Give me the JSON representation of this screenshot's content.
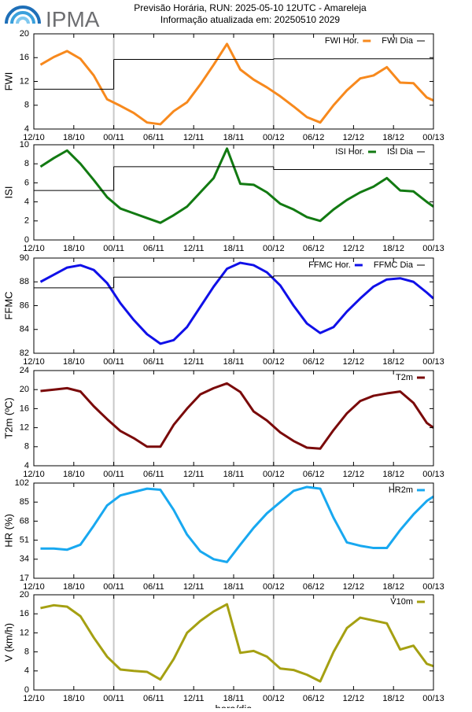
{
  "header": {
    "logo_text": "IPMA",
    "title": "Previsão Horária, RUN: 2025-05-10 12UTC - Amareleja",
    "subtitle": "Informação atualizada em: 20250510 2029"
  },
  "chart_data": [
    {
      "type": "line",
      "y_label": "FWI",
      "xlim": [
        0,
        60
      ],
      "ylim": [
        4,
        20
      ],
      "yticks": [
        4,
        8,
        12,
        16,
        20
      ],
      "xticks": [
        {
          "value": 0,
          "label": "12/10"
        },
        {
          "value": 6,
          "label": "18/10"
        },
        {
          "value": 12,
          "label": "00/11"
        },
        {
          "value": 18,
          "label": "06/11"
        },
        {
          "value": 24,
          "label": "12/11"
        },
        {
          "value": 30,
          "label": "18/11"
        },
        {
          "value": 36,
          "label": "00/12"
        },
        {
          "value": 42,
          "label": "06/12"
        },
        {
          "value": 48,
          "label": "12/12"
        },
        {
          "value": 54,
          "label": "18/12"
        },
        {
          "value": 60,
          "label": "00/13"
        }
      ],
      "vlines": [
        12,
        36
      ],
      "legend": "upper right",
      "x": [
        1,
        3,
        5,
        7,
        9,
        11,
        13,
        15,
        17,
        19,
        21,
        23,
        25,
        27,
        29,
        31,
        33,
        35,
        37,
        39,
        41,
        43,
        45,
        47,
        49,
        51,
        53,
        55,
        57,
        59,
        60
      ],
      "series": [
        {
          "name": "FWI Hor.",
          "color": "#f7891d",
          "values": [
            14.8,
            16.1,
            17.1,
            15.8,
            13.0,
            9.0,
            7.9,
            6.7,
            5.1,
            4.8,
            7.0,
            8.5,
            11.5,
            14.8,
            18.3,
            14.0,
            12.3,
            11.0,
            9.5,
            7.8,
            6.0,
            5.1,
            8.0,
            10.5,
            12.5,
            13.0,
            14.4,
            11.8,
            11.7,
            9.3,
            8.8
          ]
        },
        {
          "name": "FWI Dia",
          "color": "#000000",
          "step": true,
          "x": [
            0,
            12,
            36
          ],
          "values": [
            10.7,
            15.7,
            15.8
          ]
        }
      ]
    },
    {
      "type": "line",
      "y_label": "ISI",
      "xlim": [
        0,
        60
      ],
      "ylim": [
        0,
        10
      ],
      "yticks": [
        0,
        2,
        4,
        6,
        8,
        10
      ],
      "xticks": [
        {
          "value": 0,
          "label": "12/10"
        },
        {
          "value": 6,
          "label": "18/10"
        },
        {
          "value": 12,
          "label": "00/11"
        },
        {
          "value": 18,
          "label": "06/11"
        },
        {
          "value": 24,
          "label": "12/11"
        },
        {
          "value": 30,
          "label": "18/11"
        },
        {
          "value": 36,
          "label": "00/12"
        },
        {
          "value": 42,
          "label": "06/12"
        },
        {
          "value": 48,
          "label": "12/12"
        },
        {
          "value": 54,
          "label": "18/12"
        },
        {
          "value": 60,
          "label": "00/13"
        }
      ],
      "vlines": [
        12,
        36
      ],
      "legend": "upper right",
      "x": [
        1,
        3,
        5,
        7,
        9,
        11,
        13,
        15,
        17,
        19,
        21,
        23,
        25,
        27,
        29,
        31,
        33,
        35,
        37,
        39,
        41,
        43,
        45,
        47,
        49,
        51,
        53,
        55,
        57,
        59,
        60
      ],
      "series": [
        {
          "name": "ISI Hor.",
          "color": "#127a12",
          "values": [
            7.7,
            8.6,
            9.4,
            8.0,
            6.3,
            4.5,
            3.3,
            2.8,
            2.3,
            1.8,
            2.6,
            3.5,
            5.0,
            6.5,
            9.6,
            5.9,
            5.8,
            5.0,
            3.8,
            3.2,
            2.4,
            2.0,
            3.2,
            4.2,
            5.0,
            5.6,
            6.5,
            5.2,
            5.1,
            4.0,
            3.5
          ]
        },
        {
          "name": "ISI Dia",
          "color": "#000000",
          "step": true,
          "x": [
            0,
            12,
            36
          ],
          "values": [
            5.2,
            7.7,
            7.4
          ]
        }
      ]
    },
    {
      "type": "line",
      "y_label": "FFMC",
      "xlim": [
        0,
        60
      ],
      "ylim": [
        82,
        90
      ],
      "yticks": [
        82,
        84,
        86,
        88,
        90
      ],
      "xticks": [
        {
          "value": 0,
          "label": "12/10"
        },
        {
          "value": 6,
          "label": "18/10"
        },
        {
          "value": 12,
          "label": "00/11"
        },
        {
          "value": 18,
          "label": "06/11"
        },
        {
          "value": 24,
          "label": "12/11"
        },
        {
          "value": 30,
          "label": "18/11"
        },
        {
          "value": 36,
          "label": "00/12"
        },
        {
          "value": 42,
          "label": "06/12"
        },
        {
          "value": 48,
          "label": "12/12"
        },
        {
          "value": 54,
          "label": "18/12"
        },
        {
          "value": 60,
          "label": "00/13"
        }
      ],
      "vlines": [
        12,
        36
      ],
      "legend": "upper right",
      "x": [
        1,
        3,
        5,
        7,
        9,
        11,
        13,
        15,
        17,
        19,
        21,
        23,
        25,
        27,
        29,
        31,
        33,
        35,
        37,
        39,
        41,
        43,
        45,
        47,
        49,
        51,
        53,
        55,
        57,
        59,
        60
      ],
      "series": [
        {
          "name": "FFMC Hor.",
          "color": "#1010e8",
          "values": [
            88.0,
            88.6,
            89.2,
            89.4,
            89.0,
            87.9,
            86.2,
            84.8,
            83.6,
            82.8,
            83.1,
            84.2,
            85.9,
            87.6,
            89.1,
            89.6,
            89.4,
            88.8,
            87.7,
            86.0,
            84.5,
            83.7,
            84.2,
            85.5,
            86.6,
            87.6,
            88.2,
            88.3,
            88.0,
            87.1,
            86.6
          ]
        },
        {
          "name": "FFMC Dia",
          "color": "#000000",
          "step": true,
          "x": [
            0,
            12,
            36
          ],
          "values": [
            87.5,
            88.4,
            88.5
          ]
        }
      ]
    },
    {
      "type": "line",
      "y_label": "T2m (ºC)",
      "xlim": [
        0,
        60
      ],
      "ylim": [
        4,
        24
      ],
      "yticks": [
        4,
        8,
        12,
        16,
        20,
        24
      ],
      "xticks": [
        {
          "value": 0,
          "label": "12/10"
        },
        {
          "value": 6,
          "label": "18/10"
        },
        {
          "value": 12,
          "label": "00/11"
        },
        {
          "value": 18,
          "label": "06/11"
        },
        {
          "value": 24,
          "label": "12/11"
        },
        {
          "value": 30,
          "label": "18/11"
        },
        {
          "value": 36,
          "label": "00/12"
        },
        {
          "value": 42,
          "label": "06/12"
        },
        {
          "value": 48,
          "label": "12/12"
        },
        {
          "value": 54,
          "label": "18/12"
        },
        {
          "value": 60,
          "label": "00/13"
        }
      ],
      "vlines": [
        12,
        36
      ],
      "legend": "upper right",
      "x": [
        1,
        3,
        5,
        7,
        9,
        11,
        13,
        15,
        17,
        19,
        21,
        23,
        25,
        27,
        29,
        31,
        33,
        35,
        37,
        39,
        41,
        43,
        45,
        47,
        49,
        51,
        53,
        55,
        57,
        59,
        60
      ],
      "series": [
        {
          "name": "T2m",
          "color": "#7a0a0a",
          "values": [
            19.7,
            20.0,
            20.3,
            19.6,
            16.5,
            13.8,
            11.3,
            9.8,
            8.0,
            8.0,
            12.6,
            16.0,
            19.0,
            20.3,
            21.3,
            19.5,
            15.4,
            13.5,
            11.0,
            9.2,
            7.8,
            7.6,
            11.5,
            15.0,
            17.6,
            18.7,
            19.2,
            19.6,
            17.2,
            13.0,
            12.0
          ]
        }
      ]
    },
    {
      "type": "line",
      "y_label": "HR (%)",
      "xlim": [
        0,
        60
      ],
      "ylim": [
        17,
        102
      ],
      "yticks": [
        17,
        34,
        51,
        68,
        85,
        102
      ],
      "xticks": [
        {
          "value": 0,
          "label": "12/10"
        },
        {
          "value": 6,
          "label": "18/10"
        },
        {
          "value": 12,
          "label": "00/11"
        },
        {
          "value": 18,
          "label": "06/11"
        },
        {
          "value": 24,
          "label": "12/11"
        },
        {
          "value": 30,
          "label": "18/11"
        },
        {
          "value": 36,
          "label": "00/12"
        },
        {
          "value": 42,
          "label": "06/12"
        },
        {
          "value": 48,
          "label": "12/12"
        },
        {
          "value": 54,
          "label": "18/12"
        },
        {
          "value": 60,
          "label": "00/13"
        }
      ],
      "vlines": [
        12,
        36
      ],
      "legend": "upper right",
      "x": [
        1,
        3,
        5,
        7,
        9,
        11,
        13,
        15,
        17,
        19,
        21,
        23,
        25,
        27,
        29,
        31,
        33,
        35,
        37,
        39,
        41,
        43,
        45,
        47,
        49,
        51,
        53,
        55,
        57,
        59,
        60
      ],
      "series": [
        {
          "name": "HR2m",
          "color": "#18a8f0",
          "values": [
            43.5,
            43.5,
            42.5,
            47,
            64,
            82,
            91,
            94,
            97,
            96,
            78,
            56,
            41,
            34,
            31.5,
            47,
            62,
            75,
            85,
            95,
            98.5,
            97,
            71,
            49,
            46,
            44,
            44,
            60,
            74,
            86,
            90
          ]
        }
      ]
    },
    {
      "type": "line",
      "y_label": "V (km/h)",
      "x_label": "hora/dia",
      "xlim": [
        0,
        60
      ],
      "ylim": [
        0,
        20
      ],
      "yticks": [
        0,
        4,
        8,
        12,
        16,
        20
      ],
      "xticks": [
        {
          "value": 0,
          "label": "12/10"
        },
        {
          "value": 6,
          "label": "18/10"
        },
        {
          "value": 12,
          "label": "00/11"
        },
        {
          "value": 18,
          "label": "06/11"
        },
        {
          "value": 24,
          "label": "12/11"
        },
        {
          "value": 30,
          "label": "18/11"
        },
        {
          "value": 36,
          "label": "00/12"
        },
        {
          "value": 42,
          "label": "06/12"
        },
        {
          "value": 48,
          "label": "12/12"
        },
        {
          "value": 54,
          "label": "18/12"
        },
        {
          "value": 60,
          "label": "00/13"
        }
      ],
      "vlines": [
        12,
        36
      ],
      "legend": "upper right",
      "x": [
        1,
        3,
        5,
        7,
        9,
        11,
        13,
        15,
        17,
        19,
        21,
        23,
        25,
        27,
        29,
        31,
        33,
        35,
        37,
        39,
        41,
        43,
        45,
        47,
        49,
        51,
        53,
        55,
        57,
        59,
        60
      ],
      "series": [
        {
          "name": "V10m",
          "color": "#a5a012",
          "values": [
            17.2,
            17.8,
            17.5,
            15.5,
            11.0,
            7.0,
            4.3,
            4.0,
            3.8,
            2.2,
            6.5,
            12.0,
            14.5,
            16.5,
            18.0,
            7.8,
            8.2,
            7.0,
            4.5,
            4.2,
            3.2,
            1.8,
            8.0,
            13.0,
            15.2,
            14.6,
            14.0,
            8.5,
            9.3,
            5.5,
            5.0
          ]
        }
      ]
    }
  ]
}
